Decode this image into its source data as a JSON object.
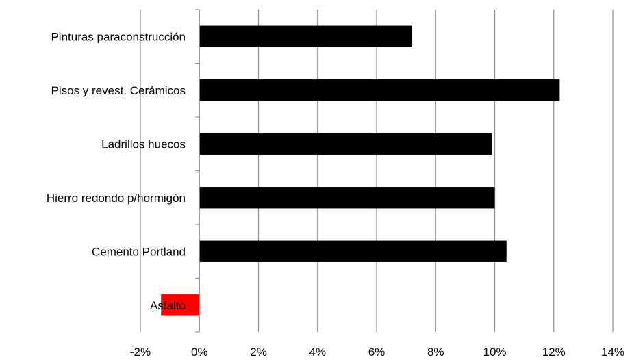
{
  "chart_data": {
    "type": "bar",
    "orientation": "horizontal",
    "categories": [
      "Pinturas paraconstrucción",
      "Pisos y revest. Cerámicos",
      "Ladrillos huecos",
      "Hierro redondo p/hormigón",
      "Cemento Portland",
      "Asfalto"
    ],
    "values": [
      7.2,
      12.2,
      9.9,
      10.0,
      10.4,
      -1.3
    ],
    "bar_colors": [
      "#000000",
      "#000000",
      "#000000",
      "#000000",
      "#000000",
      "#ff0000"
    ],
    "xlim": [
      -2,
      14
    ],
    "xticks": [
      -2,
      0,
      2,
      4,
      6,
      8,
      10,
      12,
      14
    ],
    "xtick_labels": [
      "-2%",
      "0%",
      "2%",
      "4%",
      "6%",
      "8%",
      "10%",
      "12%",
      "14%"
    ],
    "grid": "vertical",
    "title": "",
    "xlabel": "",
    "ylabel": ""
  }
}
